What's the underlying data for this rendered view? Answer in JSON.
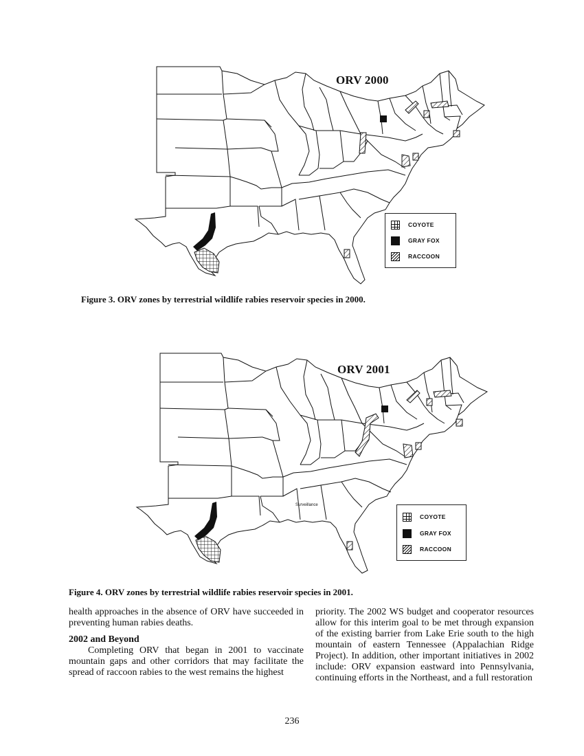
{
  "figures": [
    {
      "map_title": "ORV 2000",
      "caption": "Figure 3.  ORV zones by terrestrial wildlife rabies reservoir species in 2000.",
      "legend": [
        "COYOTE",
        "GRAY FOX",
        "RACCOON"
      ]
    },
    {
      "map_title": "ORV 2001",
      "caption": "Figure 4.  ORV zones by terrestrial wildlife rabies reservoir species in 2001.",
      "legend": [
        "COYOTE",
        "GRAY FOX",
        "RACCOON"
      ],
      "annotation": "Surveillance"
    }
  ],
  "body": {
    "left_col_p1": "health approaches in the absence of ORV have succeeded in preventing human rabies deaths.",
    "section_heading": "2002 and Beyond",
    "left_col_p2": "Completing ORV that began in 2001 to vaccinate mountain gaps and other corridors that may facilitate the spread of raccoon rabies to the west remains the highest",
    "right_col": "priority.  The 2002 WS budget and cooperator resources allow for this interim goal to be met through expansion of the existing barrier from Lake Erie south to the high mountain of eastern Tennessee (Appalachian Ridge Project).  In addition, other important initiatives in 2002 include: ORV expansion eastward into Pennsylvania, continuing efforts in the Northeast, and a full restoration"
  },
  "page_number": "236"
}
